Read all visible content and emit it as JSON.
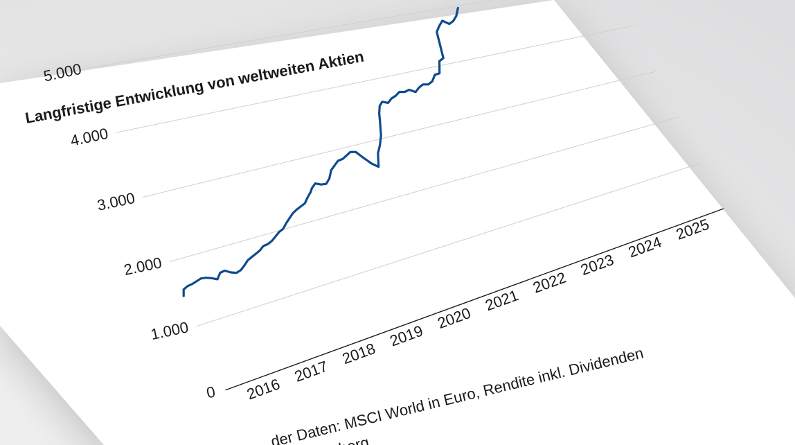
{
  "colors": {
    "series": "#0f4a8c",
    "paper": "#ffffff",
    "grid": "#cfcfcf"
  },
  "source_line1": "…der Daten: MSCI World in Euro, Rendite inkl. Dividenden",
  "source_line2": "…berg",
  "chart_data": {
    "type": "line",
    "title": "Langfristige Entwicklung von weltweiten Aktien",
    "xlabel": "",
    "ylabel": "",
    "grid": true,
    "ylim": [
      0,
      6000
    ],
    "y_ticks": [
      0,
      1000,
      2000,
      3000,
      4000,
      5000
    ],
    "y_tick_labels": [
      "0",
      "1.000",
      "2.000",
      "3.000",
      "4.000",
      "5.000"
    ],
    "x_ticks": [
      "2016",
      "2017",
      "2018",
      "2019",
      "2020",
      "2021",
      "2022",
      "2023",
      "2024",
      "2025"
    ],
    "xlim": [
      2015,
      2025.5
    ],
    "series": [
      {
        "name": "",
        "x": [
          2015.0,
          2015.05,
          2015.15,
          2015.25,
          2015.35,
          2015.45,
          2015.55,
          2015.65,
          2015.75,
          2015.85,
          2015.95,
          2016.05,
          2016.15,
          2016.25,
          2016.35,
          2016.45,
          2016.55,
          2016.65,
          2016.75,
          2016.85,
          2016.95,
          2017.05,
          2017.15,
          2017.25,
          2017.35,
          2017.45,
          2017.55,
          2017.65,
          2017.75,
          2017.85,
          2017.95,
          2018.05,
          2018.15,
          2018.2,
          2018.3,
          2018.4,
          2018.5,
          2018.6,
          2018.7,
          2018.8,
          2018.9,
          2019.0,
          2019.1,
          2019.2,
          2019.3,
          2019.4,
          2019.5,
          2019.6,
          2019.7,
          2019.8,
          2019.9,
          2020.0,
          2020.05,
          2020.12,
          2020.2,
          2020.3,
          2020.4,
          2020.5,
          2020.6,
          2020.7,
          2020.8,
          2020.9,
          2021.0,
          2021.1,
          2021.2,
          2021.3,
          2021.4,
          2021.5,
          2021.6,
          2021.7,
          2021.8,
          2021.9,
          2022.0,
          2022.1,
          2022.2,
          2022.3,
          2022.4
        ],
        "values": [
          1470,
          1560,
          1590,
          1600,
          1620,
          1640,
          1630,
          1600,
          1560,
          1640,
          1650,
          1600,
          1570,
          1590,
          1640,
          1700,
          1730,
          1760,
          1790,
          1840,
          1850,
          1880,
          1930,
          1980,
          2010,
          2080,
          2140,
          2200,
          2240,
          2270,
          2300,
          2380,
          2450,
          2500,
          2560,
          2520,
          2510,
          2580,
          2700,
          2760,
          2820,
          2830,
          2870,
          2910,
          2890,
          2760,
          2640,
          2560,
          2780,
          2900,
          3050,
          3290,
          3420,
          3540,
          3600,
          3560,
          3620,
          3650,
          3700,
          3680,
          3700,
          3640,
          3700,
          3740,
          3720,
          3760,
          3860,
          3870,
          4080,
          4120,
          4600,
          4700,
          4780,
          4700,
          4740,
          4820,
          4960
        ]
      }
    ]
  }
}
